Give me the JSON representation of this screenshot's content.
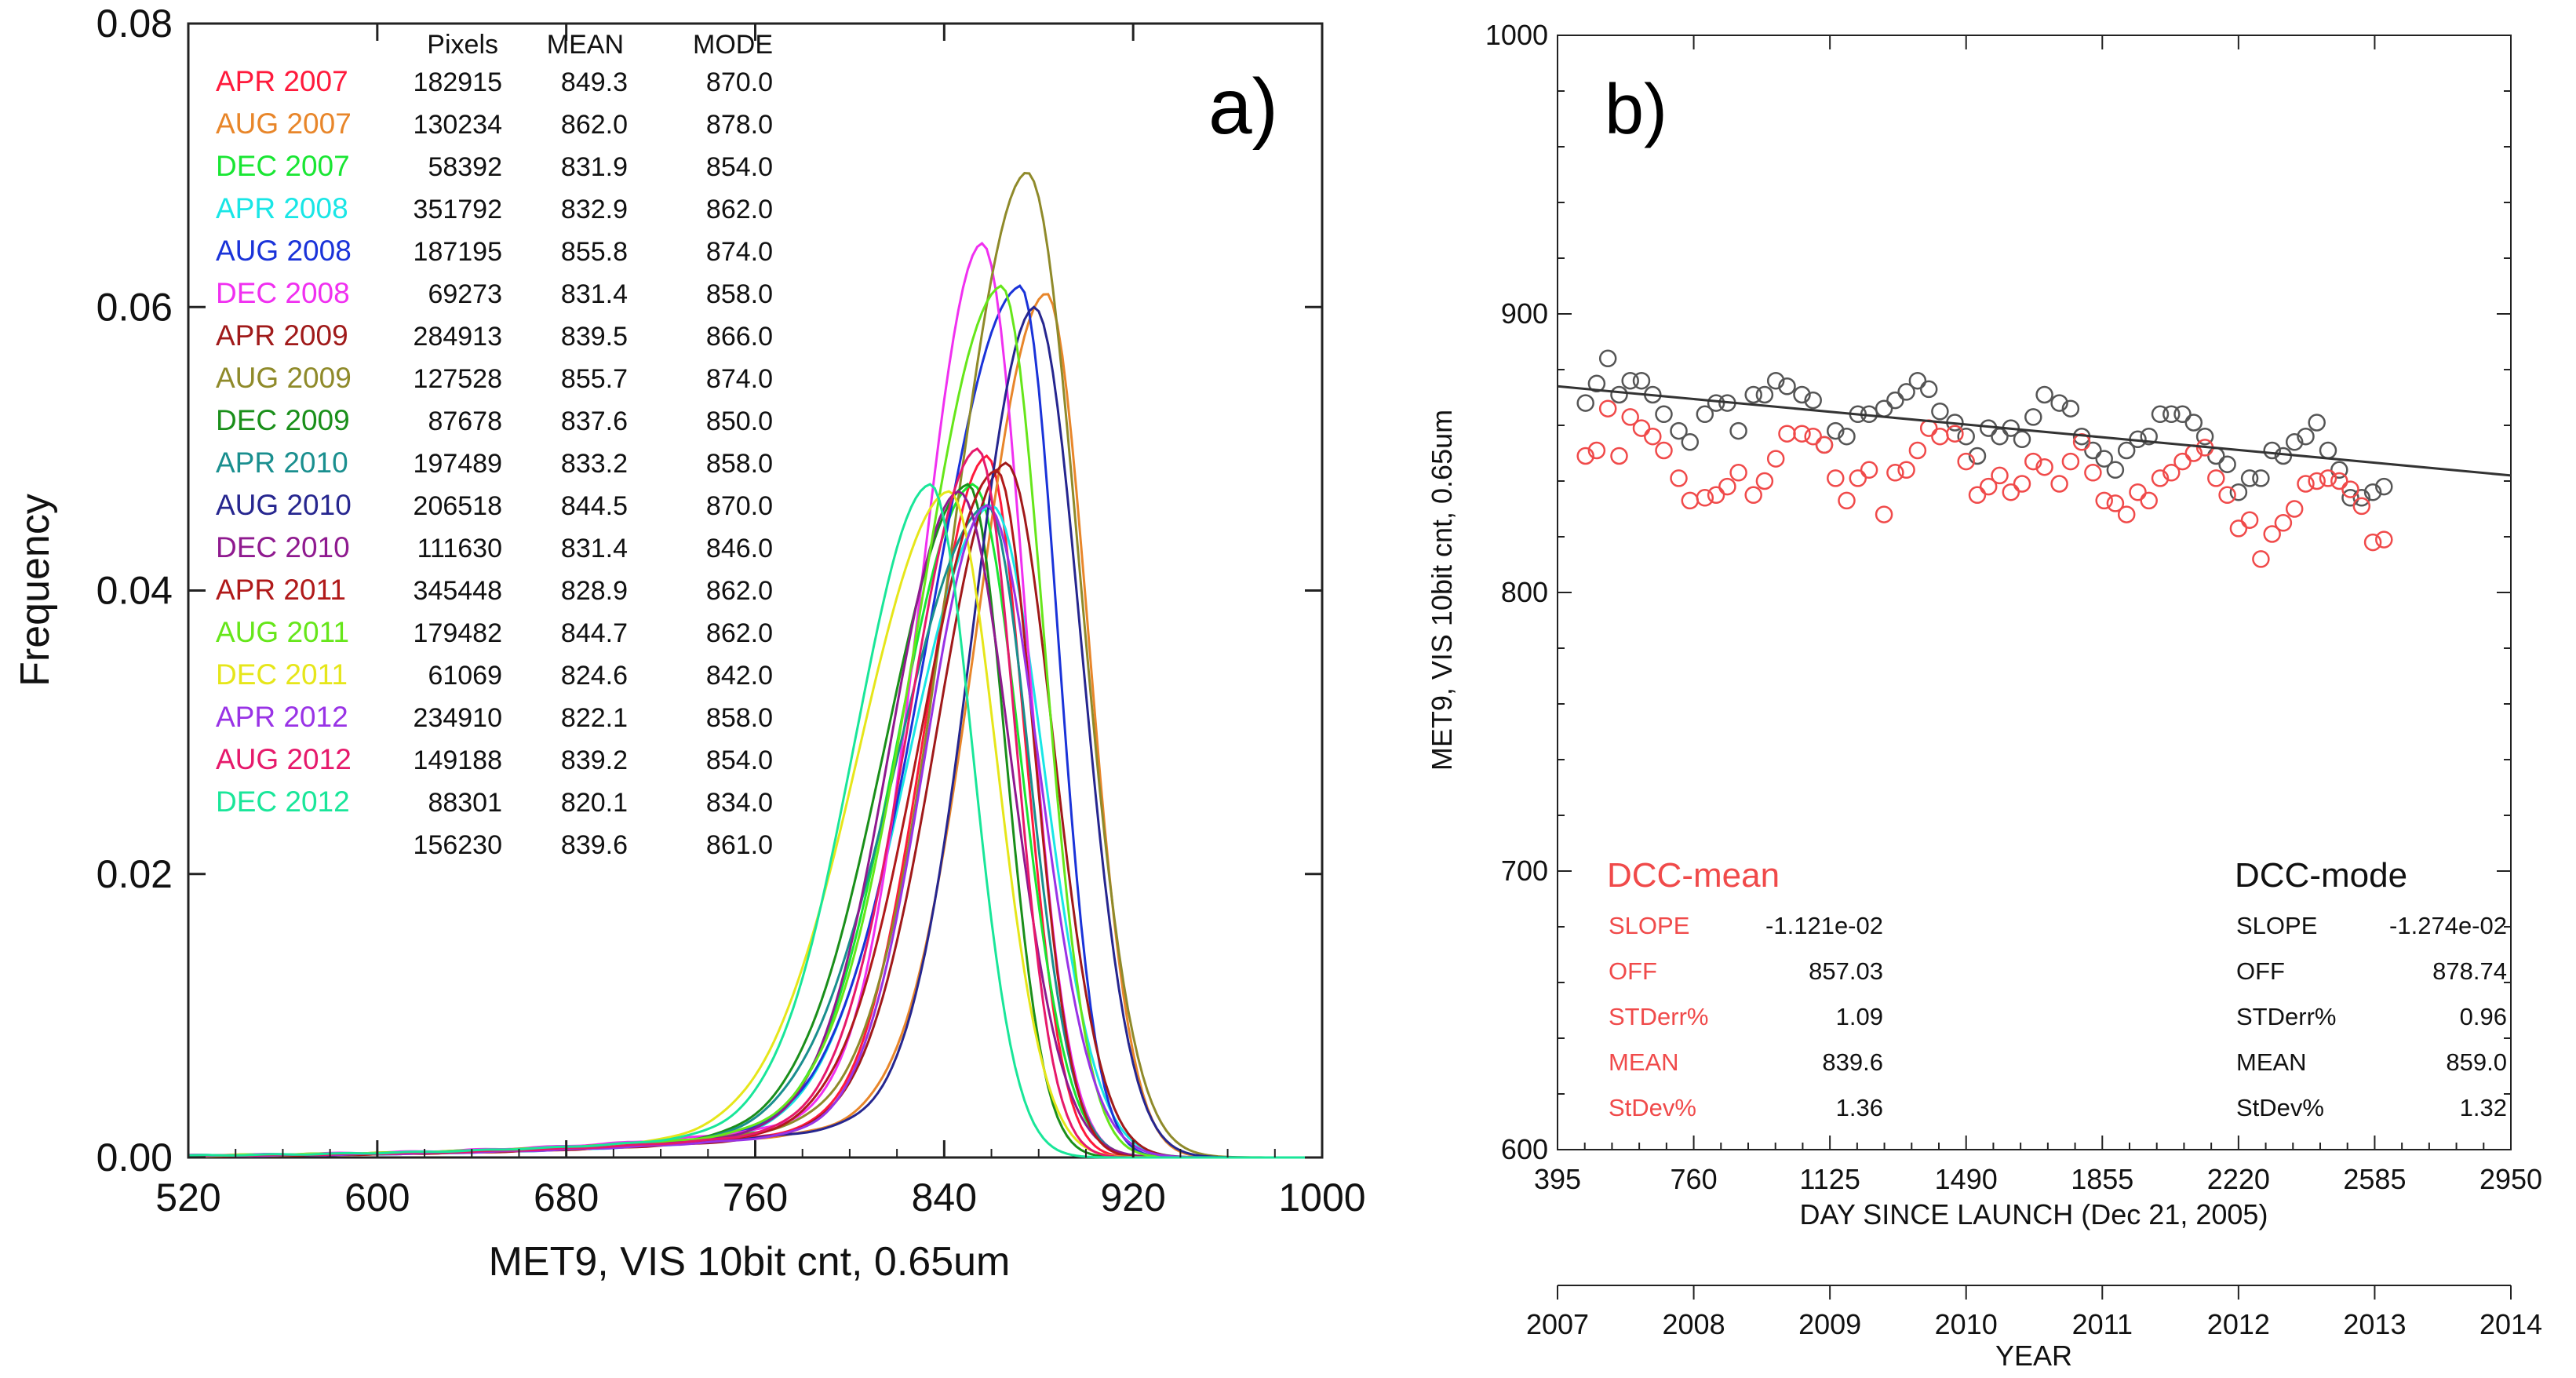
{
  "chart_data": [
    {
      "type": "line",
      "panel_label": "a)",
      "xlabel": "MET9, VIS 10bit cnt, 0.65um",
      "ylabel": "Frequency",
      "xlim": [
        520,
        1000
      ],
      "ylim": [
        0,
        0.08
      ],
      "x_ticks": [
        520,
        600,
        680,
        760,
        840,
        920,
        1000
      ],
      "y_ticks": [
        0.0,
        0.02,
        0.04,
        0.06,
        0.08
      ],
      "x_tick_labels": [
        "520",
        "600",
        "680",
        "760",
        "840",
        "920",
        "1000"
      ],
      "y_tick_labels": [
        "0.00",
        "0.02",
        "0.04",
        "0.06",
        "0.08"
      ],
      "grid": false,
      "legend_headers": [
        "Pixels",
        "MEAN",
        "MODE"
      ],
      "series": [
        {
          "name": "APR 2007",
          "color": "#ff1a3c",
          "pixels": "182915",
          "mean": "849.3",
          "mode": "870.0",
          "peak": 0.0495,
          "peak_x": 858
        },
        {
          "name": "AUG 2007",
          "color": "#e8862a",
          "pixels": "130234",
          "mean": "862.0",
          "mode": "878.0",
          "peak": 0.061,
          "peak_x": 883
        },
        {
          "name": "DEC 2007",
          "color": "#19e633",
          "pixels": "58392",
          "mean": "831.9",
          "mode": "854.0",
          "peak": 0.0475,
          "peak_x": 852
        },
        {
          "name": "APR 2008",
          "color": "#19e6e6",
          "pixels": "351792",
          "mean": "832.9",
          "mode": "862.0",
          "peak": 0.046,
          "peak_x": 860
        },
        {
          "name": "AUG 2008",
          "color": "#1a33d9",
          "pixels": "187195",
          "mean": "855.8",
          "mode": "874.0",
          "peak": 0.0615,
          "peak_x": 872
        },
        {
          "name": "DEC 2008",
          "color": "#f030f0",
          "pixels": "69273",
          "mean": "831.4",
          "mode": "858.0",
          "peak": 0.0645,
          "peak_x": 856
        },
        {
          "name": "APR 2009",
          "color": "#a01a1a",
          "pixels": "284913",
          "mean": "839.5",
          "mode": "866.0",
          "peak": 0.049,
          "peak_x": 866
        },
        {
          "name": "AUG 2009",
          "color": "#8f8a2a",
          "pixels": "127528",
          "mean": "855.7",
          "mode": "874.0",
          "peak": 0.0695,
          "peak_x": 875
        },
        {
          "name": "DEC 2009",
          "color": "#1a8f1a",
          "pixels": "87678",
          "mean": "837.6",
          "mode": "850.0",
          "peak": 0.0475,
          "peak_x": 850
        },
        {
          "name": "APR 2010",
          "color": "#1a8f8f",
          "pixels": "197489",
          "mean": "833.2",
          "mode": "858.0",
          "peak": 0.046,
          "peak_x": 858
        },
        {
          "name": "AUG 2010",
          "color": "#26268f",
          "pixels": "206518",
          "mean": "844.5",
          "mode": "870.0",
          "peak": 0.06,
          "peak_x": 878
        },
        {
          "name": "DEC 2010",
          "color": "#8f1a8f",
          "pixels": "111630",
          "mean": "831.4",
          "mode": "846.0",
          "peak": 0.047,
          "peak_x": 846
        },
        {
          "name": "APR 2011",
          "color": "#b01a1a",
          "pixels": "345448",
          "mean": "828.9",
          "mode": "862.0",
          "peak": 0.0485,
          "peak_x": 862
        },
        {
          "name": "AUG 2011",
          "color": "#66e61a",
          "pixels": "179482",
          "mean": "844.7",
          "mode": "862.0",
          "peak": 0.0615,
          "peak_x": 864
        },
        {
          "name": "DEC 2011",
          "color": "#e6e61a",
          "pixels": "61069",
          "mean": "824.6",
          "mode": "842.0",
          "peak": 0.047,
          "peak_x": 842
        },
        {
          "name": "APR 2012",
          "color": "#9933e6",
          "pixels": "234910",
          "mean": "822.1",
          "mode": "858.0",
          "peak": 0.046,
          "peak_x": 858
        },
        {
          "name": "AUG 2012",
          "color": "#e6196b",
          "pixels": "149188",
          "mean": "839.2",
          "mode": "854.0",
          "peak": 0.05,
          "peak_x": 854
        },
        {
          "name": "DEC 2012",
          "color": "#19e699",
          "pixels": "88301",
          "mean": "820.1",
          "mode": "834.0",
          "peak": 0.0475,
          "peak_x": 834
        }
      ],
      "total_row": {
        "pixels": "156230",
        "mean": "839.6",
        "mode": "861.0"
      }
    },
    {
      "type": "scatter",
      "panel_label": "b)",
      "xlabel": "DAY SINCE LAUNCH (Dec 21, 2005)",
      "ylabel": "MET9, VIS 10bit cnt, 0.65um",
      "x2label": "YEAR",
      "xlim": [
        395,
        2950
      ],
      "ylim": [
        600,
        1000
      ],
      "x_ticks": [
        395,
        760,
        1125,
        1490,
        1855,
        2220,
        2585,
        2950
      ],
      "x_tick_labels": [
        "395",
        "760",
        "1125",
        "1490",
        "1855",
        "2220",
        "2585",
        "2950"
      ],
      "y_ticks": [
        600,
        700,
        800,
        900,
        1000
      ],
      "y_tick_labels": [
        "600",
        "700",
        "800",
        "900",
        "1000"
      ],
      "x2_ticks": [
        2007,
        2008,
        2009,
        2010,
        2011,
        2012,
        2013,
        2014
      ],
      "x2_tick_labels": [
        "2007",
        "2008",
        "2009",
        "2010",
        "2011",
        "2012",
        "2013",
        "2014"
      ],
      "grid": false,
      "mode_color": "#555555",
      "mean_color": "#f04a4a",
      "trendline": {
        "x": [
          395,
          2950
        ],
        "y": [
          874,
          842
        ],
        "color": "#333333"
      },
      "series": [
        {
          "name": "DCC-mode",
          "x": [
            470,
            500,
            530,
            560,
            590,
            620,
            650,
            680,
            720,
            750,
            790,
            820,
            850,
            880,
            920,
            950,
            980,
            1010,
            1050,
            1080,
            1110,
            1140,
            1170,
            1200,
            1230,
            1270,
            1300,
            1330,
            1360,
            1390,
            1420,
            1460,
            1490,
            1520,
            1550,
            1580,
            1610,
            1640,
            1670,
            1700,
            1740,
            1770,
            1800,
            1830,
            1860,
            1890,
            1920,
            1950,
            1980,
            2010,
            2040,
            2070,
            2100,
            2130,
            2160,
            2190,
            2220,
            2250,
            2280,
            2310,
            2340,
            2370,
            2400,
            2430,
            2460,
            2490,
            2520,
            2550,
            2580,
            2610
          ],
          "y": [
            868,
            875,
            884,
            871,
            876,
            876,
            871,
            864,
            858,
            854,
            864,
            868,
            868,
            858,
            871,
            871,
            876,
            874,
            871,
            869,
            853,
            858,
            856,
            864,
            864,
            866,
            869,
            872,
            876,
            873,
            865,
            861,
            856,
            849,
            859,
            856,
            859,
            855,
            863,
            871,
            868,
            866,
            856,
            851,
            848,
            844,
            851,
            855,
            856,
            864,
            864,
            864,
            861,
            856,
            849,
            846,
            836,
            841,
            841,
            851,
            849,
            854,
            856,
            861,
            851,
            844,
            834,
            834,
            836,
            838
          ]
        },
        {
          "name": "DCC-mean",
          "x": [
            470,
            500,
            530,
            560,
            590,
            620,
            650,
            680,
            720,
            750,
            790,
            820,
            850,
            880,
            920,
            950,
            980,
            1010,
            1050,
            1080,
            1110,
            1140,
            1170,
            1200,
            1230,
            1270,
            1300,
            1330,
            1360,
            1390,
            1420,
            1460,
            1490,
            1520,
            1550,
            1580,
            1610,
            1640,
            1670,
            1700,
            1740,
            1770,
            1800,
            1830,
            1860,
            1890,
            1920,
            1950,
            1980,
            2010,
            2040,
            2070,
            2100,
            2130,
            2160,
            2190,
            2220,
            2250,
            2280,
            2310,
            2340,
            2370,
            2400,
            2430,
            2460,
            2490,
            2520,
            2550,
            2580,
            2610
          ],
          "y": [
            849,
            851,
            866,
            849,
            863,
            859,
            856,
            851,
            841,
            833,
            834,
            835,
            838,
            843,
            835,
            840,
            848,
            857,
            857,
            856,
            853,
            841,
            833,
            841,
            844,
            828,
            843,
            844,
            851,
            859,
            856,
            857,
            847,
            835,
            838,
            842,
            836,
            839,
            847,
            845,
            839,
            847,
            854,
            843,
            833,
            832,
            828,
            836,
            833,
            841,
            843,
            847,
            850,
            852,
            841,
            835,
            823,
            826,
            812,
            821,
            825,
            830,
            839,
            840,
            841,
            840,
            837,
            831,
            818,
            819
          ]
        }
      ],
      "stats": {
        "mean": {
          "title": "DCC-mean",
          "rows": [
            {
              "label": "SLOPE",
              "value": "-1.121e-02"
            },
            {
              "label": "OFF",
              "value": "857.03"
            },
            {
              "label": "STDerr%",
              "value": "1.09"
            },
            {
              "label": "MEAN",
              "value": "839.6"
            },
            {
              "label": "StDev%",
              "value": "1.36"
            }
          ]
        },
        "mode": {
          "title": "DCC-mode",
          "rows": [
            {
              "label": "SLOPE",
              "value": "-1.274e-02"
            },
            {
              "label": "OFF",
              "value": "878.74"
            },
            {
              "label": "STDerr%",
              "value": "0.96"
            },
            {
              "label": "MEAN",
              "value": "859.0"
            },
            {
              "label": "StDev%",
              "value": "1.32"
            }
          ]
        }
      }
    }
  ]
}
